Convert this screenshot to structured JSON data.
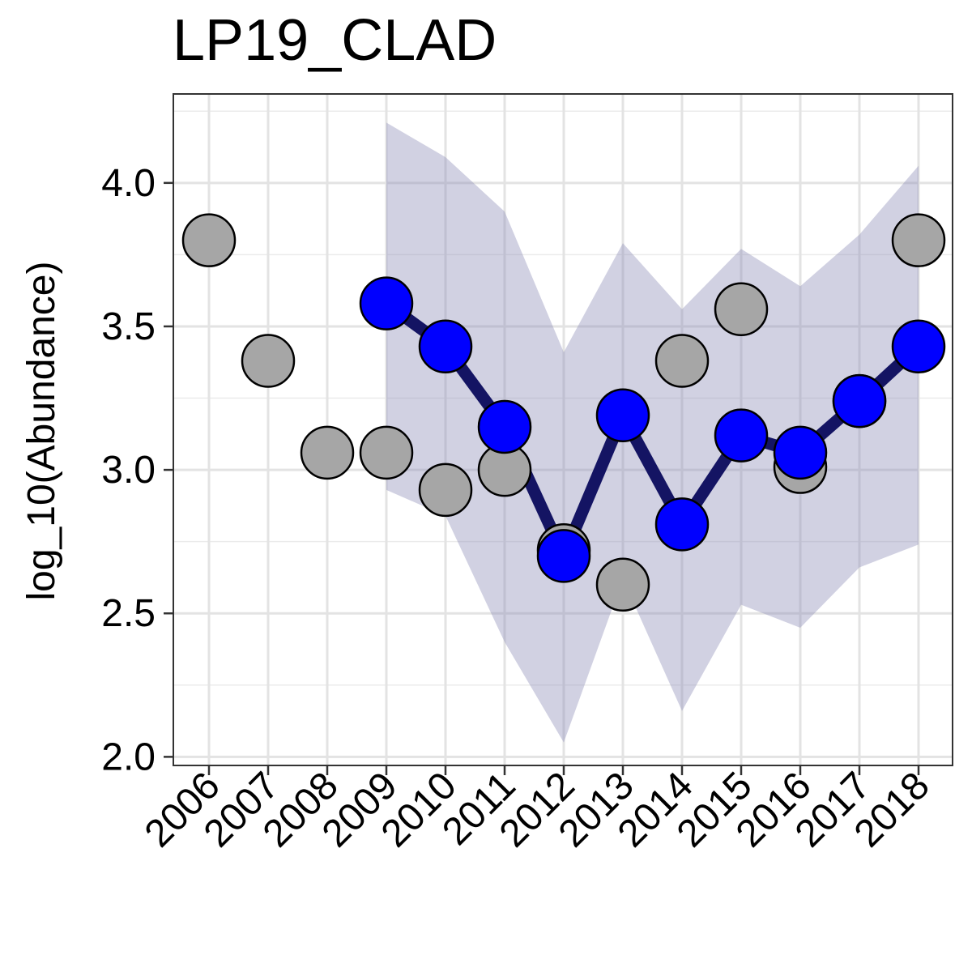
{
  "chart_data": {
    "type": "line",
    "title": "LP19_CLAD",
    "xlabel": "",
    "ylabel": "log_10(Abundance)",
    "ylim": [
      1.97,
      4.31
    ],
    "y_ticks": [
      "2.0",
      "2.5",
      "3.0",
      "3.5",
      "4.0"
    ],
    "categories": [
      "2006",
      "2007",
      "2008",
      "2009",
      "2010",
      "2011",
      "2012",
      "2013",
      "2014",
      "2015",
      "2016",
      "2017",
      "2018"
    ],
    "grid": true,
    "legend": "none",
    "observed": {
      "color": "#a6a6a6",
      "x": [
        "2006",
        "2007",
        "2008",
        "2009",
        "2010",
        "2011",
        "2012",
        "2013",
        "2014",
        "2015",
        "2016",
        "2017",
        "2018"
      ],
      "values": [
        3.8,
        3.38,
        3.06,
        3.06,
        2.93,
        3.0,
        2.72,
        2.6,
        3.38,
        3.56,
        3.01,
        3.24,
        3.8
      ]
    },
    "fitted": {
      "color": "#0000ff",
      "line_color": "#141463",
      "x": [
        "2009",
        "2010",
        "2011",
        "2012",
        "2013",
        "2014",
        "2015",
        "2016",
        "2017",
        "2018"
      ],
      "values": [
        3.58,
        3.43,
        3.15,
        2.7,
        3.19,
        2.81,
        3.12,
        3.06,
        3.24,
        3.43
      ]
    },
    "interval": {
      "color": "#8c8cb7",
      "x": [
        "2009",
        "2010",
        "2011",
        "2012",
        "2013",
        "2014",
        "2015",
        "2016",
        "2017",
        "2018"
      ],
      "upper": [
        4.21,
        4.09,
        3.9,
        3.41,
        3.79,
        3.56,
        3.77,
        3.64,
        3.82,
        4.06
      ],
      "lower": [
        2.93,
        2.84,
        2.4,
        2.05,
        2.62,
        2.16,
        2.53,
        2.45,
        2.66,
        2.74
      ]
    }
  }
}
